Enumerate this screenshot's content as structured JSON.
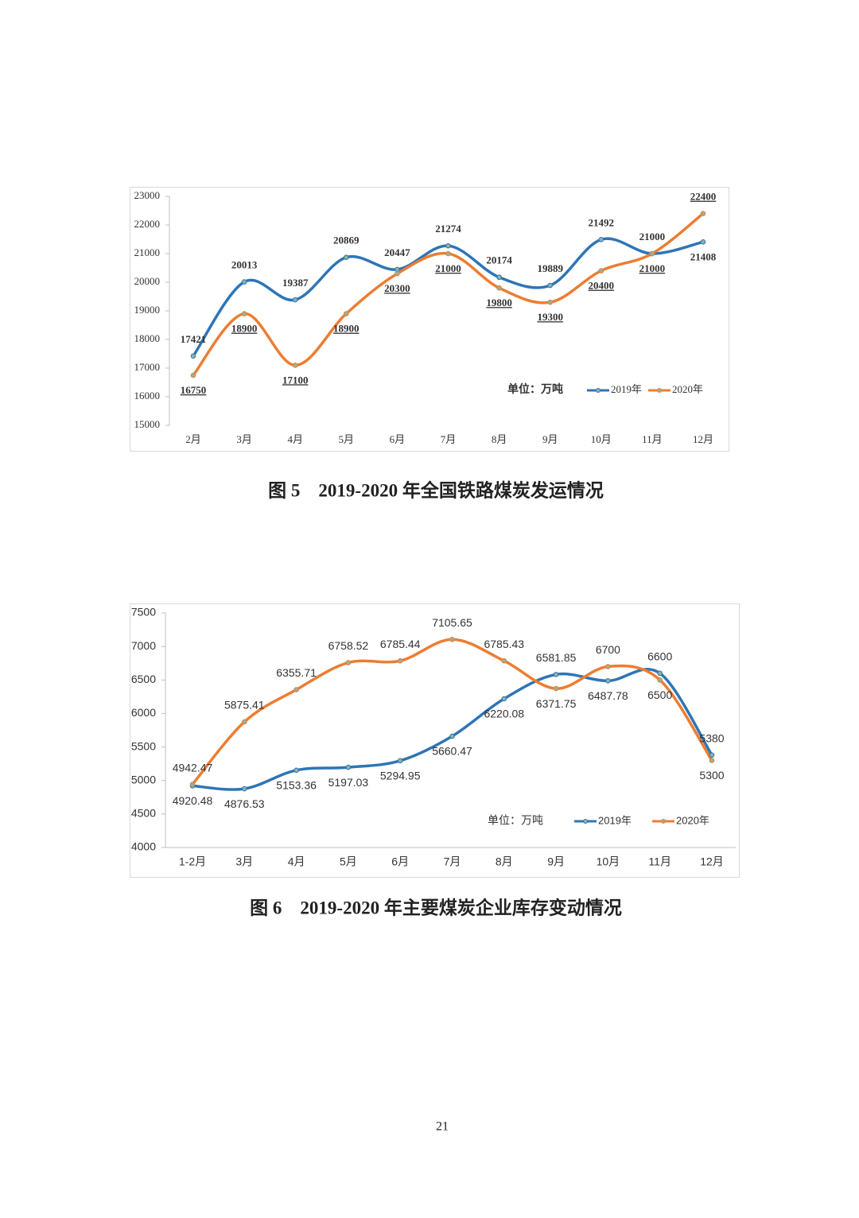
{
  "chart_data": [
    {
      "type": "line",
      "title": "图 5　2019-2020 年全国铁路煤炭发运情况",
      "annotation": "单位：万吨",
      "categories": [
        "2月",
        "3月",
        "4月",
        "5月",
        "6月",
        "7月",
        "8月",
        "9月",
        "10月",
        "11月",
        "12月"
      ],
      "series": [
        {
          "name": "2019年",
          "color": "#2e75b6",
          "values": [
            17421,
            20013,
            19387,
            20869,
            20447,
            21274,
            20174,
            19889,
            21492,
            21000,
            21408
          ]
        },
        {
          "name": "2020年",
          "color": "#ed7d31",
          "values": [
            16750,
            18900,
            17100,
            18900,
            20300,
            21000,
            19800,
            19300,
            20400,
            21000,
            22400
          ]
        }
      ],
      "ylim": [
        15000,
        23000
      ],
      "yticks": [
        15000,
        16000,
        17000,
        18000,
        19000,
        20000,
        21000,
        22000,
        23000
      ],
      "grid": false,
      "legend": "lower right"
    },
    {
      "type": "line",
      "title": "图 6　2019-2020 年主要煤炭企业库存变动情况",
      "annotation": "单位：万吨",
      "categories": [
        "1-2月",
        "3月",
        "4月",
        "5月",
        "6月",
        "7月",
        "8月",
        "9月",
        "10月",
        "11月",
        "12月"
      ],
      "series": [
        {
          "name": "2019年",
          "color": "#2e75b6",
          "values": [
            4920.48,
            4876.53,
            5153.36,
            5197.03,
            5294.95,
            5660.47,
            6220.08,
            6581.85,
            6487.78,
            6600,
            5380
          ]
        },
        {
          "name": "2020年",
          "color": "#ed7d31",
          "values": [
            4942.47,
            5875.41,
            6355.71,
            6758.52,
            6785.44,
            7105.65,
            6785.43,
            6371.75,
            6700,
            6500,
            5300
          ]
        }
      ],
      "ylim": [
        4000,
        7500
      ],
      "yticks": [
        4000,
        4500,
        5000,
        5500,
        6000,
        6500,
        7000,
        7500
      ],
      "grid": false,
      "legend": "lower right"
    }
  ],
  "page_number": "21"
}
